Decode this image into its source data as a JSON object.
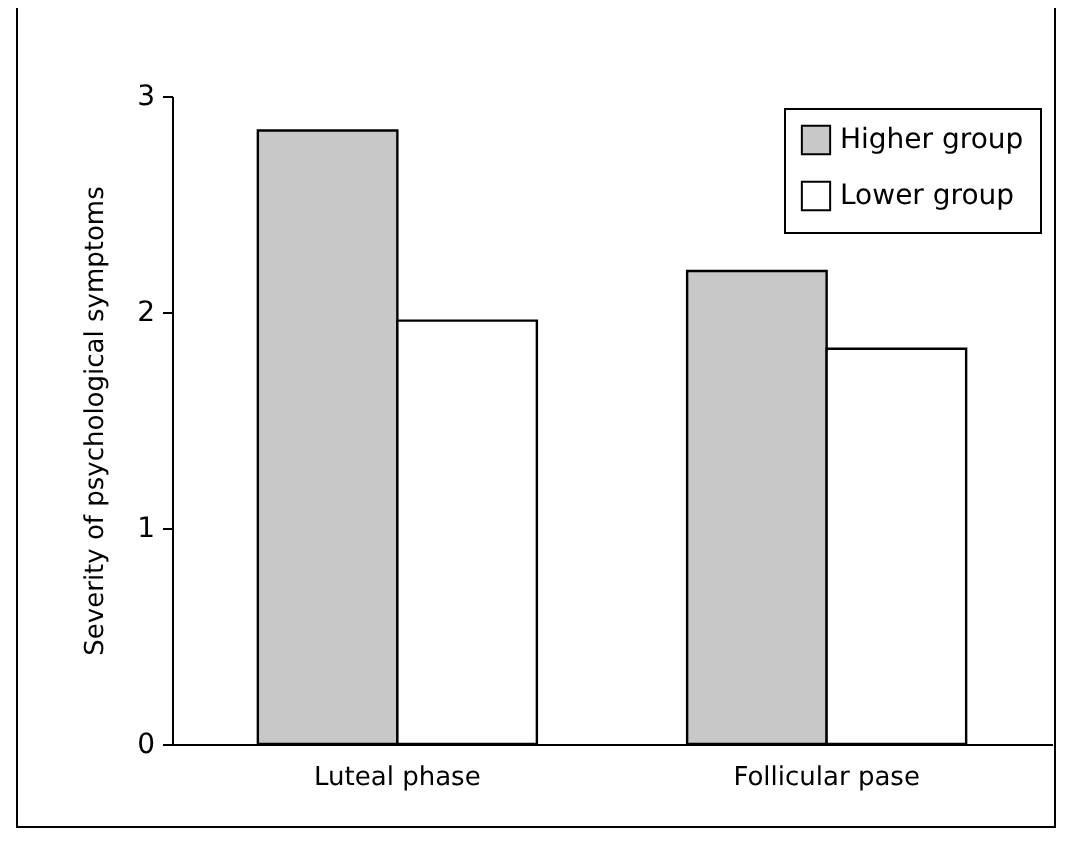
{
  "chart_data": {
    "type": "bar",
    "ylabel": "Severity of psychological symptoms",
    "categories": [
      "Luteal phase",
      "Follicular pase"
    ],
    "series": [
      {
        "name": "Higher group",
        "color": "#c8c8c8",
        "values": [
          2.84,
          2.19
        ]
      },
      {
        "name": "Lower group",
        "color": "#ffffff",
        "values": [
          1.96,
          1.83
        ]
      }
    ],
    "ylim": [
      0,
      3
    ],
    "yticks": [
      0,
      1,
      2,
      3
    ],
    "grid": false,
    "legend": "top right"
  }
}
